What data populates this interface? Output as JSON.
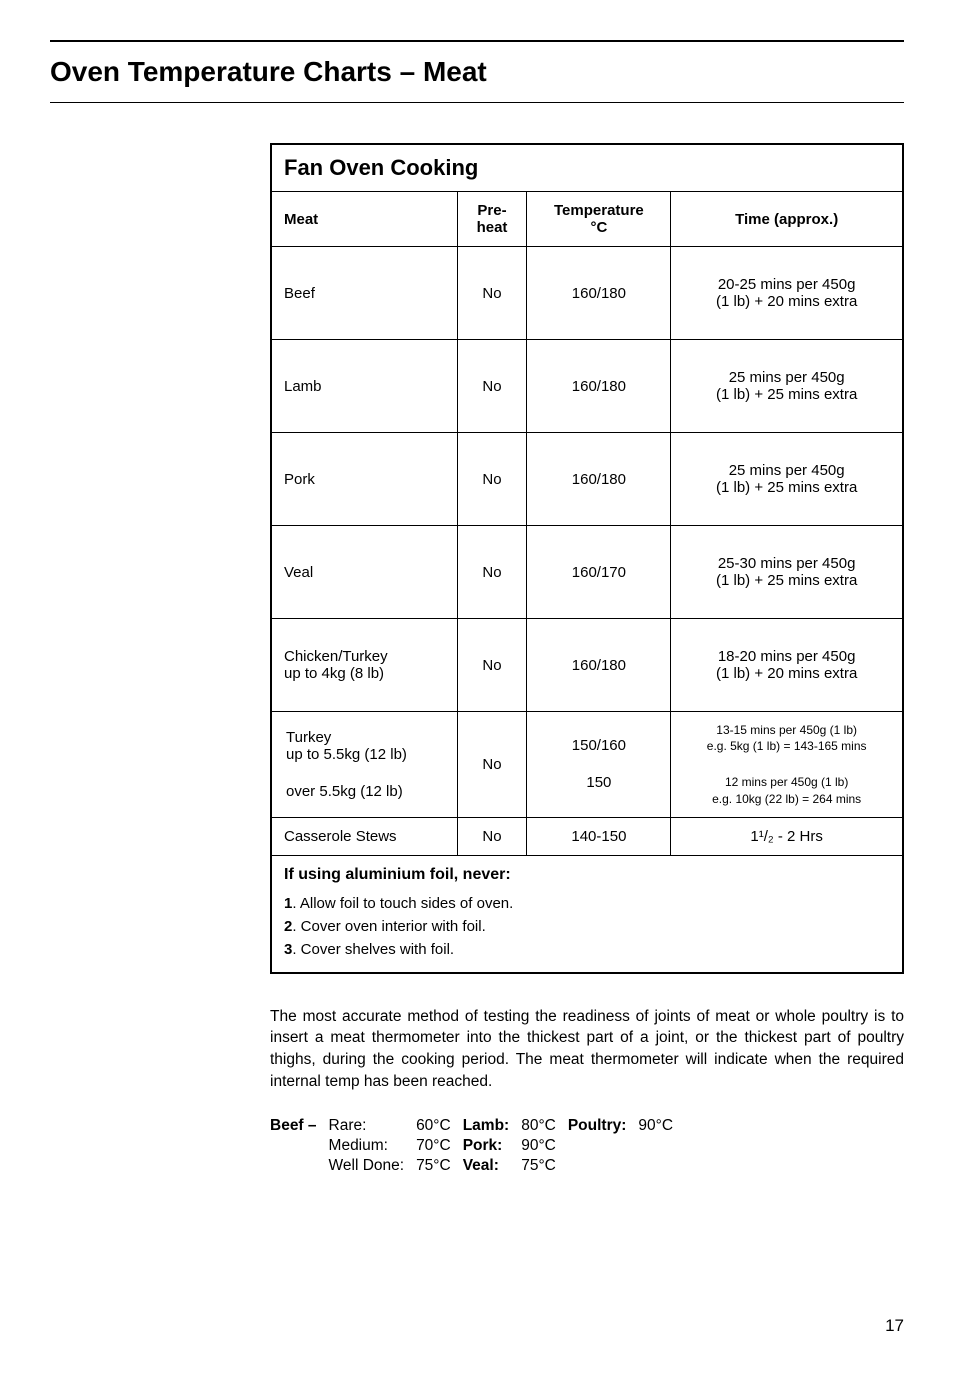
{
  "page": {
    "title": "Oven Temperature Charts – Meat",
    "number": "17"
  },
  "table": {
    "title": "Fan Oven Cooking",
    "headers": {
      "meat": "Meat",
      "preheat": "Pre-\nheat",
      "temp": "Temperature\n°C",
      "time": "Time (approx.)"
    },
    "rows": [
      {
        "meat": "Beef",
        "preheat": "No",
        "temp": "160/180",
        "time": "20-25 mins per 450g\n(1 lb) + 20 mins extra"
      },
      {
        "meat": "Lamb",
        "preheat": "No",
        "temp": "160/180",
        "time": "25 mins per 450g\n(1 lb) + 25 mins extra"
      },
      {
        "meat": "Pork",
        "preheat": "No",
        "temp": "160/180",
        "time": "25 mins per 450g\n(1 lb) + 25 mins extra"
      },
      {
        "meat": "Veal",
        "preheat": "No",
        "temp": "160/170",
        "time": "25-30 mins per 450g\n(1 lb) + 25 mins extra"
      },
      {
        "meat": "Chicken/Turkey\nup to 4kg (8 lb)",
        "preheat": "No",
        "temp": "160/180",
        "time": "18-20 mins per 450g\n(1 lb) + 20 mins extra"
      }
    ],
    "turkey": {
      "meat_top": "Turkey\nup to 5.5kg (12 lb)",
      "meat_bottom": "over 5.5kg (12 lb)",
      "preheat": "No",
      "temp_top": "150/160",
      "temp_bottom": "150",
      "time_top": "13-15 mins per 450g (1 lb)\ne.g. 5kg (1 lb) = 143-165 mins",
      "time_bottom": "12 mins per 450g (1 lb)\ne.g. 10kg (22 lb) = 264 mins"
    },
    "casserole": {
      "meat": "Casserole Stews",
      "preheat": "No",
      "temp": "140-150",
      "time": "1¹/₂ - 2 Hrs"
    }
  },
  "foil": {
    "title": "If using aluminium foil, never",
    "colon": ":",
    "item1_num": "1",
    "item1_text": ". Allow foil to touch sides of oven.",
    "item2_num": "2",
    "item2_text": ". Cover oven interior with foil.",
    "item3_num": "3",
    "item3_text": ". Cover shelves with foil."
  },
  "body": {
    "para": "The most accurate method of testing the readiness of joints of meat or whole poultry is to insert a meat thermometer into the thickest part of a joint, or the thickest part of poultry thighs, during the cooking period. The meat thermometer will indicate when the required internal temp has been reached."
  },
  "temps": {
    "beef_label": "Beef –",
    "rare_label": "Rare:",
    "rare_val": "60°C",
    "medium_label": "Medium:",
    "medium_val": "70°C",
    "well_label": "Well Done:",
    "well_val": "75°C",
    "lamb_label": "Lamb:",
    "lamb_val": "80°C",
    "pork_label": "Pork:",
    "pork_val": "90°C",
    "veal_label": "Veal:",
    "veal_val": "75°C",
    "poultry_label": "Poultry:",
    "poultry_val": "90°C"
  }
}
